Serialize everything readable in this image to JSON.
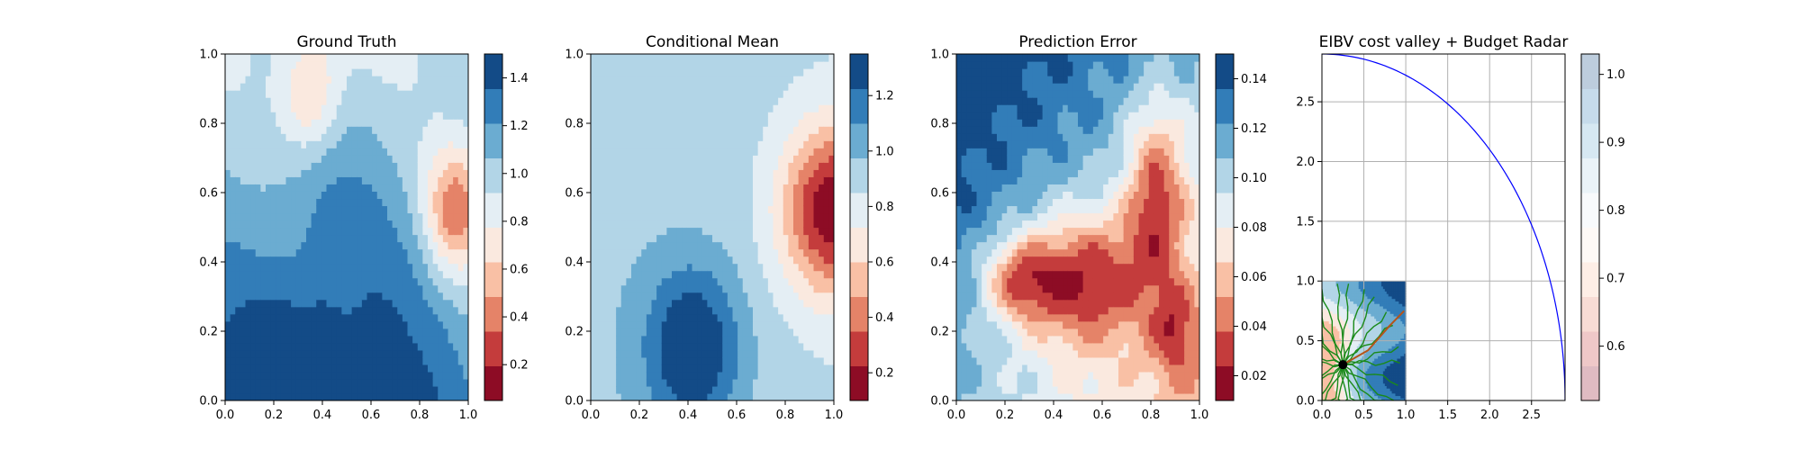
{
  "chart_data": [
    {
      "type": "heatmap",
      "title": "Ground Truth",
      "x_ticks": [
        "0.0",
        "0.2",
        "0.4",
        "0.6",
        "0.8",
        "1.0"
      ],
      "y_ticks": [
        "0.0",
        "0.2",
        "0.4",
        "0.6",
        "0.8",
        "1.0"
      ],
      "xlim": [
        0,
        1
      ],
      "ylim": [
        0,
        1
      ],
      "colormap": "RdBu",
      "colorbar_range": [
        0.05,
        1.5
      ],
      "colorbar_ticks": [
        "0.2",
        "0.4",
        "0.6",
        "0.8",
        "1.0",
        "1.2",
        "1.4"
      ],
      "colorbar_tick_values": [
        0.2,
        0.4,
        0.6,
        0.8,
        1.0,
        1.2,
        1.4
      ]
    },
    {
      "type": "heatmap",
      "title": "Conditional Mean",
      "x_ticks": [
        "0.0",
        "0.2",
        "0.4",
        "0.6",
        "0.8",
        "1.0"
      ],
      "y_ticks": [
        "0.0",
        "0.2",
        "0.4",
        "0.6",
        "0.8",
        "1.0"
      ],
      "xlim": [
        0,
        1
      ],
      "ylim": [
        0,
        1
      ],
      "colormap": "RdBu",
      "colorbar_range": [
        0.1,
        1.35
      ],
      "colorbar_ticks": [
        "0.2",
        "0.4",
        "0.6",
        "0.8",
        "1.0",
        "1.2"
      ],
      "colorbar_tick_values": [
        0.2,
        0.4,
        0.6,
        0.8,
        1.0,
        1.2
      ]
    },
    {
      "type": "heatmap",
      "title": "Prediction Error",
      "x_ticks": [
        "0.0",
        "0.2",
        "0.4",
        "0.6",
        "0.8",
        "1.0"
      ],
      "y_ticks": [
        "0.0",
        "0.2",
        "0.4",
        "0.6",
        "0.8",
        "1.0"
      ],
      "xlim": [
        0,
        1
      ],
      "ylim": [
        0,
        1
      ],
      "colormap": "RdBu",
      "colorbar_range": [
        0.01,
        0.15
      ],
      "colorbar_ticks": [
        "0.02",
        "0.04",
        "0.06",
        "0.08",
        "0.10",
        "0.12",
        "0.14"
      ],
      "colorbar_tick_values": [
        0.02,
        0.04,
        0.06,
        0.08,
        0.1,
        0.12,
        0.14
      ]
    },
    {
      "type": "heatmap",
      "title": "EIBV cost valley + Budget Radar",
      "x_ticks": [
        "0.0",
        "0.5",
        "1.0",
        "1.5",
        "2.0",
        "2.5"
      ],
      "x_tick_values": [
        0,
        0.5,
        1.0,
        1.5,
        2.0,
        2.5
      ],
      "y_ticks": [
        "0.0",
        "0.5",
        "1.0",
        "1.5",
        "2.0",
        "2.5"
      ],
      "y_tick_values": [
        0,
        0.5,
        1.0,
        1.5,
        2.0,
        2.5
      ],
      "xlim": [
        0,
        2.9
      ],
      "ylim": [
        0,
        2.9
      ],
      "grid": true,
      "budget_radius": 2.9,
      "start_point": [
        0.25,
        0.3
      ],
      "colormap": "RdBu",
      "colorbar_range": [
        0.52,
        1.03
      ],
      "colorbar_ticks": [
        "0.6",
        "0.7",
        "0.8",
        "0.9",
        "1.0"
      ],
      "colorbar_tick_values": [
        0.6,
        0.7,
        0.8,
        0.9,
        1.0
      ]
    }
  ]
}
